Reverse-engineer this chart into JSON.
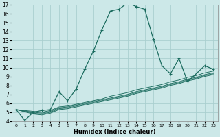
{
  "xlabel": "Humidex (Indice chaleur)",
  "ylabel": "",
  "bg_color": "#cce8e8",
  "grid_color": "#aacfcf",
  "line_color": "#1a6b5e",
  "xlim": [
    -0.5,
    23.5
  ],
  "ylim": [
    4,
    17
  ],
  "xticks": [
    0,
    1,
    2,
    3,
    4,
    5,
    6,
    7,
    8,
    9,
    10,
    11,
    12,
    13,
    14,
    15,
    16,
    17,
    18,
    19,
    20,
    21,
    22,
    23
  ],
  "yticks": [
    4,
    5,
    6,
    7,
    8,
    9,
    10,
    11,
    12,
    13,
    14,
    15,
    16,
    17
  ],
  "series": [
    {
      "x": [
        0,
        1,
        2,
        3,
        4,
        5,
        6,
        7,
        8,
        9,
        10,
        11,
        12,
        13,
        14,
        15,
        16,
        17,
        18,
        19,
        20,
        22,
        23
      ],
      "y": [
        5.3,
        4.1,
        5.0,
        5.2,
        5.3,
        7.3,
        6.3,
        7.6,
        9.8,
        11.8,
        14.2,
        16.3,
        16.5,
        17.2,
        16.8,
        16.5,
        13.2,
        10.2,
        9.3,
        11.0,
        8.4,
        10.2,
        9.8
      ],
      "marker": "+"
    },
    {
      "x": [
        0,
        2,
        3,
        4,
        5,
        6,
        7,
        8,
        9,
        10,
        11,
        12,
        13,
        14,
        15,
        16,
        17,
        18,
        19,
        20,
        21,
        22,
        23
      ],
      "y": [
        5.3,
        5.1,
        5.0,
        5.2,
        5.6,
        5.7,
        5.9,
        6.1,
        6.3,
        6.5,
        6.8,
        7.0,
        7.2,
        7.5,
        7.7,
        7.9,
        8.1,
        8.4,
        8.6,
        8.9,
        9.1,
        9.4,
        9.6
      ],
      "marker": null
    },
    {
      "x": [
        0,
        2,
        3,
        4,
        5,
        6,
        7,
        8,
        9,
        10,
        11,
        12,
        13,
        14,
        15,
        16,
        17,
        18,
        19,
        20,
        21,
        22,
        23
      ],
      "y": [
        5.3,
        5.0,
        4.9,
        5.1,
        5.5,
        5.6,
        5.8,
        6.0,
        6.2,
        6.4,
        6.6,
        6.8,
        7.0,
        7.3,
        7.5,
        7.7,
        7.9,
        8.2,
        8.4,
        8.7,
        8.9,
        9.2,
        9.4
      ],
      "marker": null
    },
    {
      "x": [
        0,
        2,
        3,
        4,
        5,
        6,
        7,
        8,
        9,
        10,
        11,
        12,
        13,
        14,
        15,
        16,
        17,
        18,
        19,
        20,
        21,
        22,
        23
      ],
      "y": [
        5.3,
        4.9,
        4.8,
        5.0,
        5.4,
        5.5,
        5.7,
        5.9,
        6.1,
        6.3,
        6.5,
        6.7,
        6.9,
        7.2,
        7.4,
        7.6,
        7.8,
        8.1,
        8.3,
        8.6,
        8.8,
        9.1,
        9.3
      ],
      "marker": null
    },
    {
      "x": [
        0,
        2,
        3,
        4,
        5,
        6,
        7,
        8,
        9,
        10,
        11,
        12,
        13,
        14,
        15,
        16,
        17,
        18,
        19,
        20,
        21,
        22,
        23
      ],
      "y": [
        5.3,
        4.8,
        4.7,
        4.9,
        5.3,
        5.4,
        5.6,
        5.8,
        6.0,
        6.2,
        6.4,
        6.6,
        6.8,
        7.1,
        7.3,
        7.5,
        7.7,
        8.0,
        8.2,
        8.5,
        8.7,
        9.0,
        9.2
      ],
      "marker": null
    }
  ]
}
